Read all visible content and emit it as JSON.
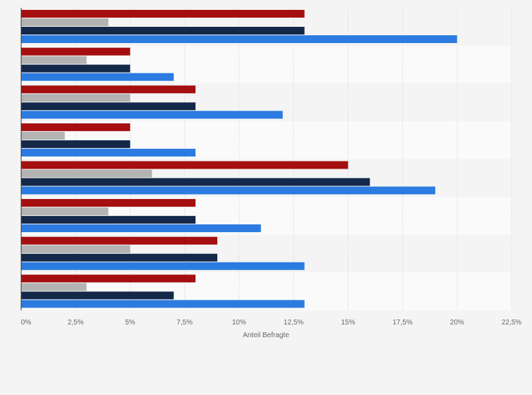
{
  "chart_data": {
    "type": "bar",
    "orientation": "horizontal",
    "title": "",
    "xlabel": "Anteil Befragte",
    "ylabel": "",
    "xlim": [
      0,
      22.5
    ],
    "xticks": [
      0,
      2.5,
      5,
      7.5,
      10,
      12.5,
      15,
      17.5,
      20,
      22.5
    ],
    "tick_labels": [
      "0%",
      "2,5%",
      "5%",
      "7,5%",
      "10%",
      "12,5%",
      "15%",
      "17,5%",
      "20%",
      "22,5%"
    ],
    "grid": true,
    "legend": "none",
    "categories": [
      "",
      "",
      "",
      "",
      "",
      "",
      "",
      ""
    ],
    "series": [
      {
        "color": "#a50f0f",
        "values": [
          13,
          5,
          8,
          5,
          15,
          8,
          9,
          8
        ]
      },
      {
        "color": "#b3b3b3",
        "values": [
          4,
          3,
          5,
          2,
          6,
          4,
          5,
          3
        ]
      },
      {
        "color": "#14294a",
        "values": [
          13,
          5,
          8,
          5,
          16,
          8,
          9,
          7
        ]
      },
      {
        "color": "#2b7be0",
        "values": [
          20,
          7,
          12,
          8,
          19,
          11,
          13,
          13
        ]
      }
    ]
  }
}
